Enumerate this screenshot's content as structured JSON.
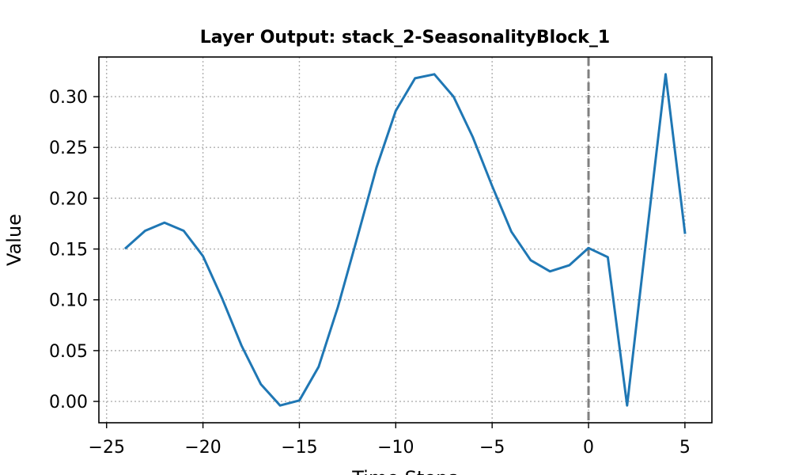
{
  "chart_data": {
    "type": "line",
    "title": "Layer Output: stack_2-SeasonalityBlock_1",
    "xlabel": "Time Steps",
    "ylabel": "Value",
    "xlim": [
      -25.4,
      6.4
    ],
    "ylim": [
      -0.021,
      0.339
    ],
    "xticks": [
      -25,
      -20,
      -15,
      -10,
      -5,
      0,
      5
    ],
    "xtick_labels": [
      "−25",
      "−20",
      "−15",
      "−10",
      "−5",
      "0",
      "5"
    ],
    "yticks": [
      0.0,
      0.05,
      0.1,
      0.15,
      0.2,
      0.25,
      0.3
    ],
    "ytick_labels": [
      "0.00",
      "0.05",
      "0.10",
      "0.15",
      "0.20",
      "0.25",
      "0.30"
    ],
    "grid": true,
    "vline": {
      "x": 0,
      "style": "dashed",
      "color": "#808080"
    },
    "series": [
      {
        "color": "#1f77b4",
        "x": [
          -24,
          -23,
          -22,
          -21,
          -20,
          -19,
          -18,
          -17,
          -16,
          -15,
          -14,
          -13,
          -12,
          -11,
          -10,
          -9,
          -8,
          -7,
          -6,
          -5,
          -4,
          -3,
          -2,
          -1,
          0,
          1,
          2,
          3,
          4,
          5
        ],
        "y": [
          0.151,
          0.168,
          0.176,
          0.168,
          0.143,
          0.101,
          0.055,
          0.017,
          -0.004,
          0.001,
          0.034,
          0.093,
          0.161,
          0.23,
          0.286,
          0.318,
          0.322,
          0.3,
          0.26,
          0.212,
          0.167,
          0.139,
          0.128,
          0.134,
          0.151,
          0.142,
          -0.004,
          0.16,
          0.322,
          0.166
        ]
      }
    ]
  }
}
